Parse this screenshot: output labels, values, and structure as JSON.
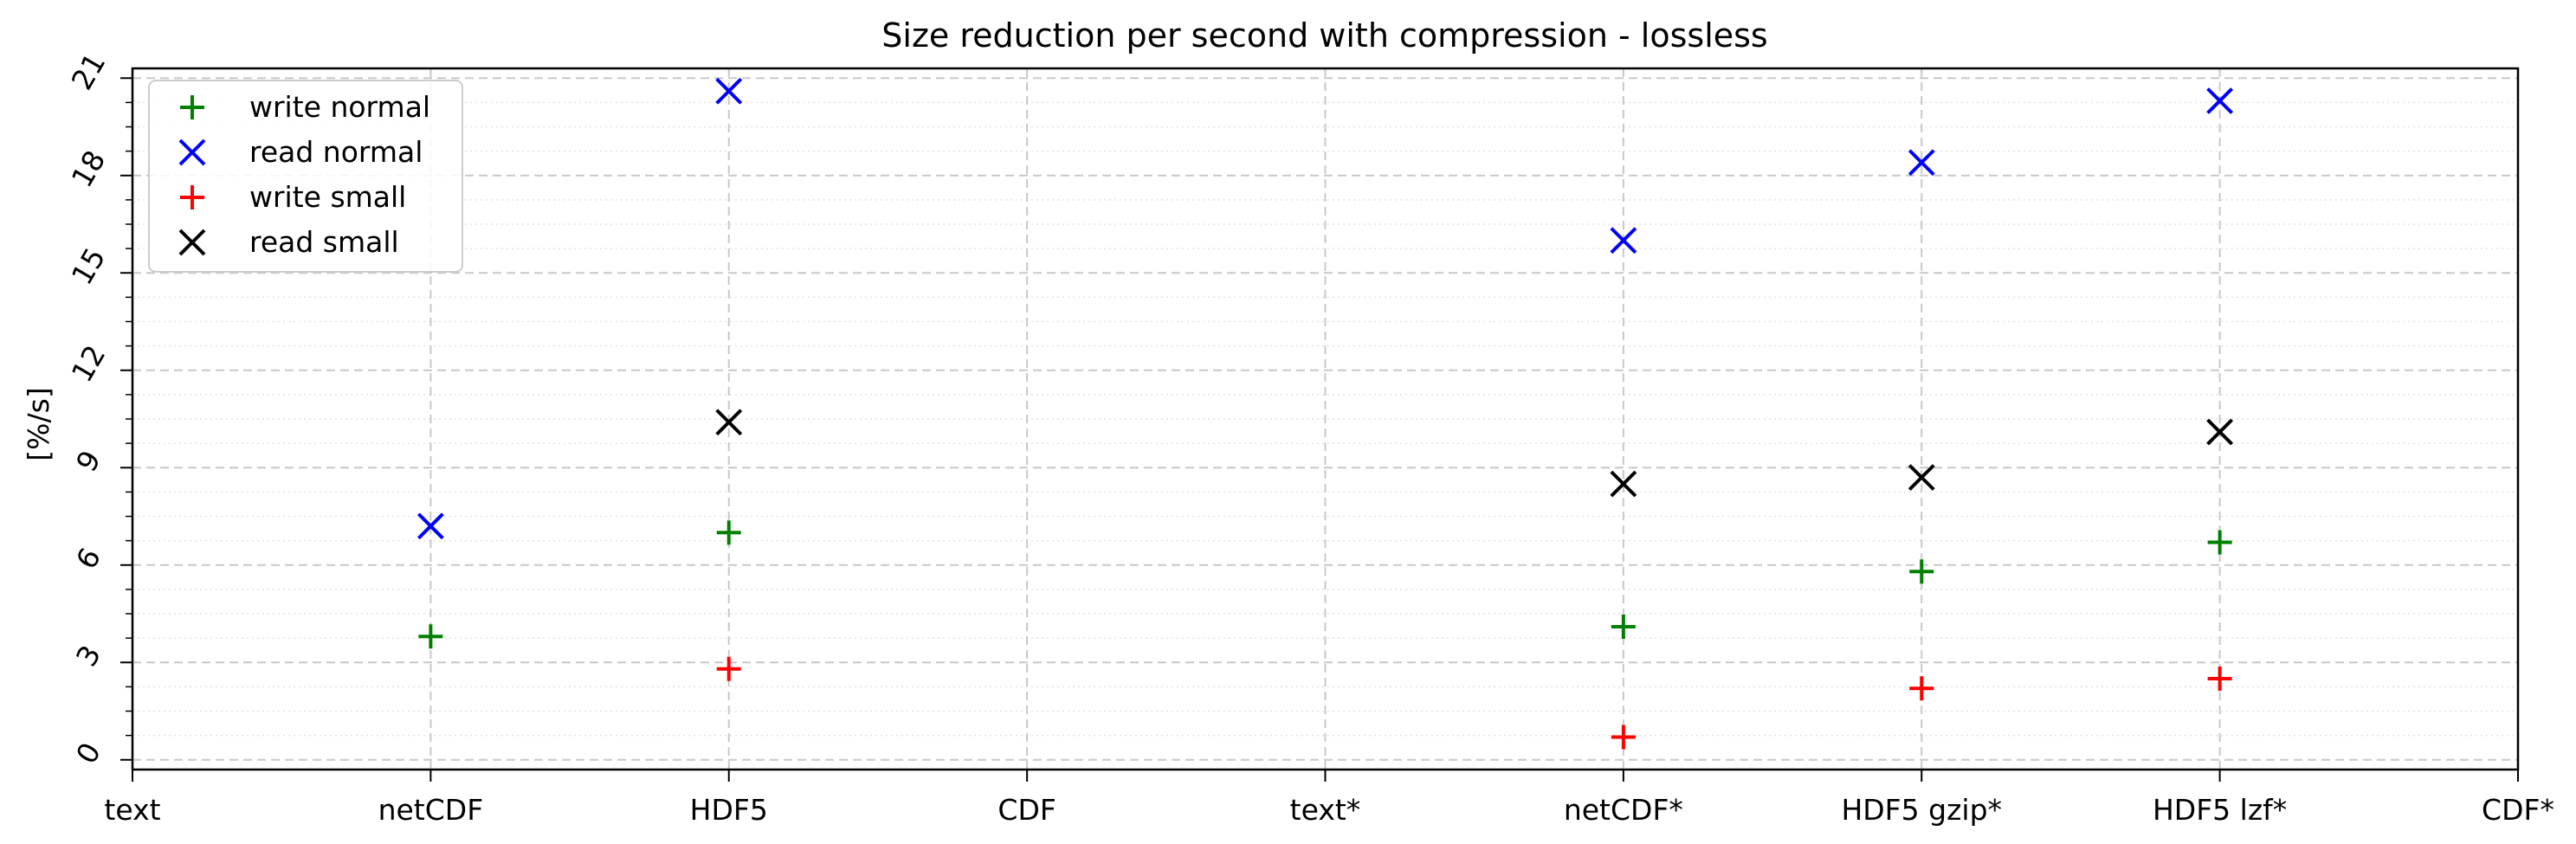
{
  "chart_data": {
    "type": "scatter",
    "title": "Size reduction per second with compression - lossless",
    "xlabel": "",
    "ylabel": "[%/s]",
    "categories": [
      "text",
      "netCDF",
      "HDF5",
      "CDF",
      "text*",
      "netCDF*",
      "HDF5 gzip*",
      "HDF5 lzf*",
      "CDF*"
    ],
    "ylim": [
      -0.3,
      21.3
    ],
    "yticks": [
      0,
      3,
      6,
      9,
      12,
      15,
      18,
      21
    ],
    "grid": {
      "major": true,
      "minor": true
    },
    "legend_position": "top-left",
    "series": [
      {
        "name": "write normal",
        "marker": "+",
        "color": "#008000",
        "values": [
          null,
          3.8,
          7.0,
          null,
          null,
          4.1,
          5.8,
          6.7,
          null
        ]
      },
      {
        "name": "read normal",
        "marker": "x",
        "color": "#0000ff",
        "values": [
          null,
          7.2,
          20.6,
          null,
          null,
          16.0,
          18.4,
          20.3,
          null
        ]
      },
      {
        "name": "write small",
        "marker": "+",
        "color": "#ff0000",
        "values": [
          null,
          null,
          2.8,
          null,
          null,
          0.7,
          2.2,
          2.5,
          null
        ]
      },
      {
        "name": "read small",
        "marker": "x",
        "color": "#000000",
        "values": [
          null,
          null,
          10.4,
          null,
          null,
          8.5,
          8.7,
          10.1,
          null
        ]
      }
    ]
  }
}
